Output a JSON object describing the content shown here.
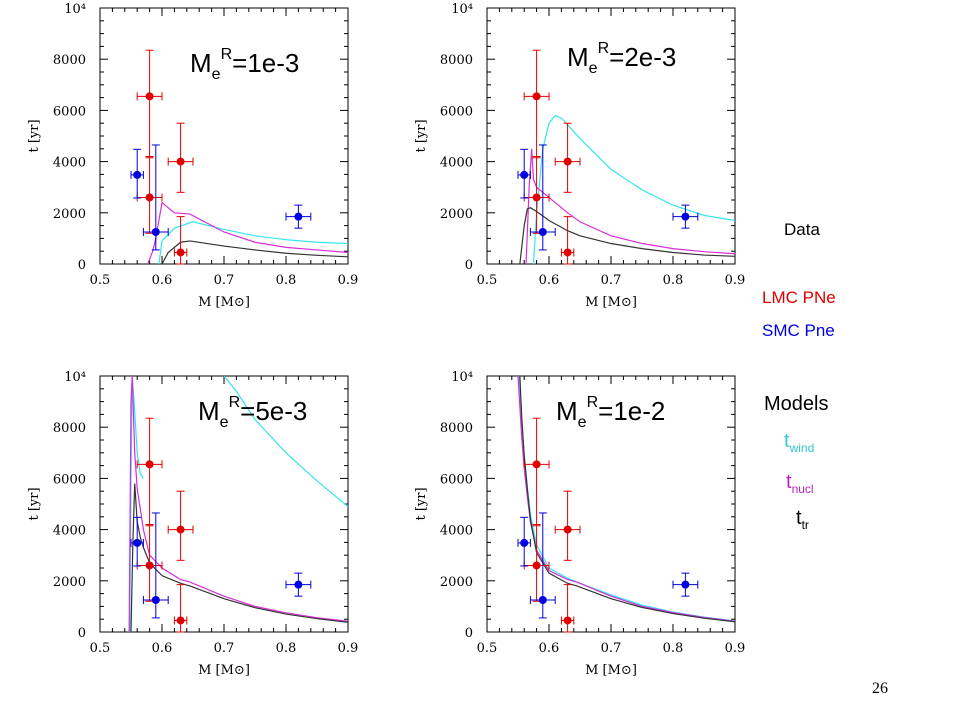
{
  "colors": {
    "lmc": "#e00000",
    "smc": "#0000e0",
    "t_wind": "#33e6ee",
    "t_nucl": "#d62fd6",
    "t_tr": "#333333",
    "axis": "#000000"
  },
  "legend": {
    "data_title": "Data",
    "lmc_label": "LMC PNe",
    "smc_label": "SMC Pne",
    "models_title": "Models",
    "t_wind_main": "t",
    "t_wind_sub": "wind",
    "t_nucl_main": "t",
    "t_nucl_sub": "nucl",
    "t_tr_main": "t",
    "t_tr_sub": "tr"
  },
  "slide_number": "26",
  "chart_data": [
    {
      "type": "scatter",
      "title_main": "M",
      "title_sub": "e",
      "title_sup": "R",
      "title_value": "=1e-3",
      "ylabel": "t [yr]",
      "xlabel": "M [M⊙]",
      "xlim": [
        0.5,
        0.9
      ],
      "ylim": [
        0,
        10000
      ],
      "xticks": [
        "0.5",
        "0.6",
        "0.7",
        "0.8",
        "0.9"
      ],
      "yticks": [
        "0",
        "2000",
        "4000",
        "6000",
        "8000",
        "10⁴"
      ],
      "lmc_points": [
        {
          "x": 0.58,
          "y": 6550,
          "xerr": 0.02,
          "yerr_lo": 2400,
          "yerr_hi": 1800
        },
        {
          "x": 0.58,
          "y": 2600,
          "xerr": 0.02,
          "yerr_lo": 1400,
          "yerr_hi": 1600
        },
        {
          "x": 0.63,
          "y": 4000,
          "xerr": 0.02,
          "yerr_lo": 1200,
          "yerr_hi": 1500
        },
        {
          "x": 0.63,
          "y": 450,
          "xerr": 0.01,
          "yerr_lo": 450,
          "yerr_hi": 1400
        }
      ],
      "smc_points": [
        {
          "x": 0.56,
          "y": 3480,
          "xerr": 0.01,
          "yerr_lo": 900,
          "yerr_hi": 1000
        },
        {
          "x": 0.59,
          "y": 1250,
          "xerr": 0.02,
          "yerr_lo": 700,
          "yerr_hi": 3400
        },
        {
          "x": 0.82,
          "y": 1850,
          "xerr": 0.02,
          "yerr_lo": 450,
          "yerr_hi": 450
        }
      ],
      "series": [
        {
          "name": "t_wind",
          "x": [
            0.595,
            0.6,
            0.62,
            0.65,
            0.7,
            0.75,
            0.8,
            0.85,
            0.9
          ],
          "values": [
            0,
            900,
            1400,
            1650,
            1350,
            1100,
            950,
            850,
            800
          ]
        },
        {
          "name": "t_nucl",
          "x": [
            0.577,
            0.585,
            0.59,
            0.6,
            0.62,
            0.645,
            0.7,
            0.75,
            0.8,
            0.85,
            0.9
          ],
          "values": [
            0,
            500,
            1000,
            2400,
            2000,
            1950,
            1250,
            850,
            650,
            550,
            450
          ]
        },
        {
          "name": "t_tr",
          "x": [
            0.6,
            0.61,
            0.63,
            0.645,
            0.7,
            0.75,
            0.8,
            0.85,
            0.9
          ],
          "values": [
            0,
            450,
            850,
            900,
            700,
            550,
            420,
            340,
            280
          ]
        }
      ]
    },
    {
      "type": "scatter",
      "title_main": "M",
      "title_sub": "e",
      "title_sup": "R",
      "title_value": "=2e-3",
      "ylabel": "t [yr]",
      "xlabel": "M [M⊙]",
      "xlim": [
        0.5,
        0.9
      ],
      "ylim": [
        0,
        10000
      ],
      "xticks": [
        "0.5",
        "0.6",
        "0.7",
        "0.8",
        "0.9"
      ],
      "yticks": [
        "0",
        "2000",
        "4000",
        "6000",
        "8000",
        "10⁴"
      ],
      "lmc_points": [
        {
          "x": 0.58,
          "y": 6550,
          "xerr": 0.02,
          "yerr_lo": 2400,
          "yerr_hi": 1800
        },
        {
          "x": 0.58,
          "y": 2600,
          "xerr": 0.02,
          "yerr_lo": 1400,
          "yerr_hi": 1600
        },
        {
          "x": 0.63,
          "y": 4000,
          "xerr": 0.02,
          "yerr_lo": 1200,
          "yerr_hi": 1500
        },
        {
          "x": 0.63,
          "y": 450,
          "xerr": 0.01,
          "yerr_lo": 450,
          "yerr_hi": 1400
        }
      ],
      "smc_points": [
        {
          "x": 0.56,
          "y": 3480,
          "xerr": 0.01,
          "yerr_lo": 900,
          "yerr_hi": 1000
        },
        {
          "x": 0.59,
          "y": 1250,
          "xerr": 0.02,
          "yerr_lo": 700,
          "yerr_hi": 3400
        },
        {
          "x": 0.82,
          "y": 1850,
          "xerr": 0.02,
          "yerr_lo": 450,
          "yerr_hi": 450
        }
      ],
      "series": [
        {
          "name": "t_wind",
          "x": [
            0.575,
            0.58,
            0.59,
            0.6,
            0.61,
            0.62,
            0.65,
            0.7,
            0.75,
            0.8,
            0.85,
            0.9
          ],
          "values": [
            0,
            2000,
            4500,
            5500,
            5800,
            5700,
            4900,
            3700,
            2900,
            2300,
            1900,
            1700
          ]
        },
        {
          "name": "t_nucl",
          "x": [
            0.563,
            0.568,
            0.572,
            0.575,
            0.58,
            0.6,
            0.63,
            0.65,
            0.7,
            0.75,
            0.8,
            0.85,
            0.9
          ],
          "values": [
            0,
            3000,
            4500,
            3300,
            3000,
            2600,
            2000,
            1650,
            1100,
            800,
            600,
            480,
            400
          ]
        },
        {
          "name": "t_tr",
          "x": [
            0.553,
            0.56,
            0.565,
            0.57,
            0.58,
            0.6,
            0.63,
            0.65,
            0.7,
            0.75,
            0.8,
            0.85,
            0.9
          ],
          "values": [
            0,
            1500,
            2150,
            2200,
            2050,
            1700,
            1300,
            1100,
            800,
            600,
            450,
            350,
            300
          ]
        }
      ]
    },
    {
      "type": "scatter",
      "title_main": "M",
      "title_sub": "e",
      "title_sup": "R",
      "title_value": "=5e-3",
      "ylabel": "t [yr]",
      "xlabel": "M [M⊙]",
      "xlim": [
        0.5,
        0.9
      ],
      "ylim": [
        0,
        10000
      ],
      "xticks": [
        "0.5",
        "0.6",
        "0.7",
        "0.8",
        "0.9"
      ],
      "yticks": [
        "0",
        "2000",
        "4000",
        "6000",
        "8000",
        "10⁴"
      ],
      "lmc_points": [
        {
          "x": 0.58,
          "y": 6550,
          "xerr": 0.02,
          "yerr_lo": 2400,
          "yerr_hi": 1800
        },
        {
          "x": 0.58,
          "y": 2600,
          "xerr": 0.02,
          "yerr_lo": 1400,
          "yerr_hi": 1600
        },
        {
          "x": 0.63,
          "y": 4000,
          "xerr": 0.02,
          "yerr_lo": 1200,
          "yerr_hi": 1500
        },
        {
          "x": 0.63,
          "y": 450,
          "xerr": 0.01,
          "yerr_lo": 450,
          "yerr_hi": 1400
        }
      ],
      "smc_points": [
        {
          "x": 0.56,
          "y": 3480,
          "xerr": 0.01,
          "yerr_lo": 900,
          "yerr_hi": 1000
        },
        {
          "x": 0.59,
          "y": 1250,
          "xerr": 0.02,
          "yerr_lo": 700,
          "yerr_hi": 3400
        },
        {
          "x": 0.82,
          "y": 1850,
          "xerr": 0.02,
          "yerr_lo": 450,
          "yerr_hi": 450
        }
      ],
      "series": [
        {
          "name": "t_wind",
          "x": [
            0.548,
            0.55,
            0.552,
            0.555,
            0.56,
            0.565,
            0.57
          ],
          "values": [
            0,
            6000,
            10000,
            9000,
            7000,
            6200,
            6000
          ],
          "x2": [
            0.7,
            0.72,
            0.75,
            0.8,
            0.85,
            0.9
          ],
          "values2": [
            10000,
            9400,
            8300,
            7000,
            5900,
            4900
          ]
        },
        {
          "name": "t_nucl",
          "x": [
            0.547,
            0.55,
            0.552,
            0.556,
            0.56,
            0.57,
            0.58,
            0.6,
            0.63,
            0.645,
            0.7,
            0.75,
            0.8,
            0.85,
            0.9
          ],
          "values": [
            0,
            9000,
            10000,
            7000,
            5600,
            4000,
            3000,
            2500,
            2050,
            1950,
            1400,
            1000,
            750,
            560,
            420
          ]
        },
        {
          "name": "t_tr",
          "x": [
            0.55,
            0.553,
            0.556,
            0.56,
            0.565,
            0.57,
            0.58,
            0.6,
            0.63,
            0.645,
            0.7,
            0.75,
            0.8,
            0.85,
            0.9
          ],
          "values": [
            0,
            3500,
            5800,
            4300,
            3700,
            3300,
            2700,
            2200,
            1900,
            1800,
            1300,
            950,
            700,
            520,
            380
          ]
        }
      ]
    },
    {
      "type": "scatter",
      "title_main": "M",
      "title_sub": "e",
      "title_sup": "R",
      "title_value": "=1e-2",
      "ylabel": "t [yr]",
      "xlabel": "M [M⊙]",
      "xlim": [
        0.5,
        0.9
      ],
      "ylim": [
        0,
        10000
      ],
      "xticks": [
        "0.5",
        "0.6",
        "0.7",
        "0.8",
        "0.9"
      ],
      "yticks": [
        "0",
        "2000",
        "4000",
        "6000",
        "8000",
        "10⁴"
      ],
      "lmc_points": [
        {
          "x": 0.58,
          "y": 6550,
          "xerr": 0.02,
          "yerr_lo": 2400,
          "yerr_hi": 1800
        },
        {
          "x": 0.58,
          "y": 2600,
          "xerr": 0.02,
          "yerr_lo": 1400,
          "yerr_hi": 1600
        },
        {
          "x": 0.63,
          "y": 4000,
          "xerr": 0.02,
          "yerr_lo": 1200,
          "yerr_hi": 1500
        },
        {
          "x": 0.63,
          "y": 450,
          "xerr": 0.01,
          "yerr_lo": 450,
          "yerr_hi": 1400
        }
      ],
      "smc_points": [
        {
          "x": 0.56,
          "y": 3480,
          "xerr": 0.01,
          "yerr_lo": 900,
          "yerr_hi": 1000
        },
        {
          "x": 0.59,
          "y": 1250,
          "xerr": 0.02,
          "yerr_lo": 700,
          "yerr_hi": 3400
        },
        {
          "x": 0.82,
          "y": 1850,
          "xerr": 0.02,
          "yerr_lo": 450,
          "yerr_hi": 450
        }
      ],
      "series": [
        {
          "name": "t_wind",
          "x": [
            0.552,
            0.555,
            0.56,
            0.565,
            0.57,
            0.58,
            0.6,
            0.63,
            0.645,
            0.7,
            0.75,
            0.8,
            0.85,
            0.9
          ],
          "values": [
            10000,
            8600,
            6900,
            5700,
            4600,
            3400,
            2500,
            2100,
            1950,
            1450,
            1050,
            780,
            580,
            430
          ]
        },
        {
          "name": "t_nucl",
          "x": [
            0.55,
            0.553,
            0.556,
            0.56,
            0.565,
            0.57,
            0.58,
            0.6,
            0.63,
            0.645,
            0.7,
            0.75,
            0.8,
            0.85,
            0.9
          ],
          "values": [
            10000,
            8800,
            7600,
            6400,
            5300,
            4300,
            3200,
            2400,
            2050,
            1950,
            1400,
            1000,
            760,
            570,
            420
          ]
        },
        {
          "name": "t_tr",
          "x": [
            0.553,
            0.556,
            0.56,
            0.565,
            0.57,
            0.58,
            0.6,
            0.63,
            0.645,
            0.7,
            0.75,
            0.8,
            0.85,
            0.9
          ],
          "values": [
            10000,
            8400,
            6900,
            5600,
            4400,
            3100,
            2300,
            1900,
            1800,
            1300,
            960,
            720,
            540,
            400
          ]
        }
      ]
    }
  ]
}
